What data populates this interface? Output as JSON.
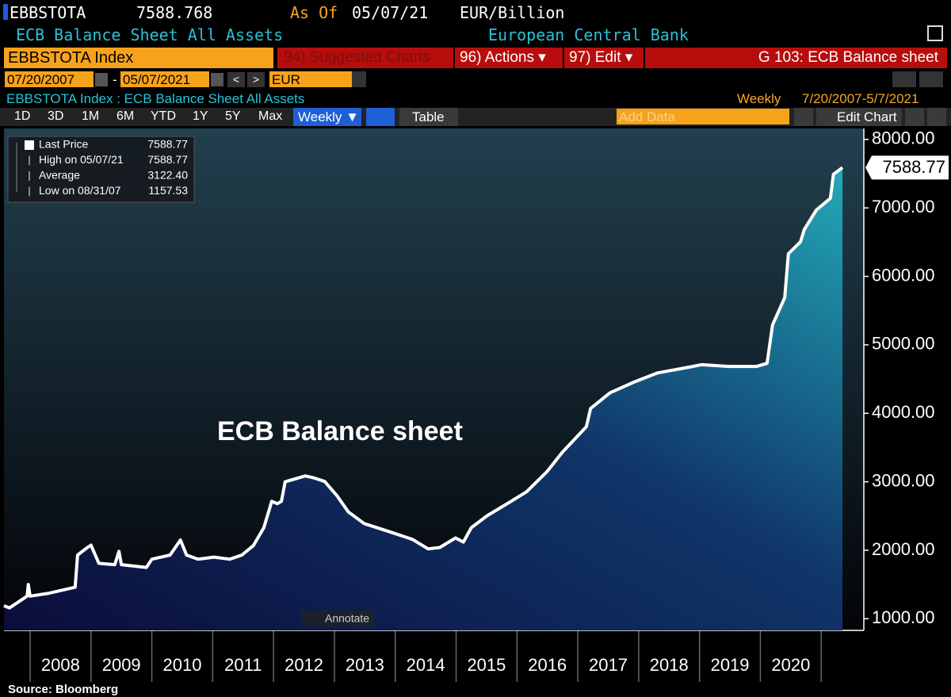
{
  "header": {
    "ticker": "EBBSTOTA",
    "price": "7588.768",
    "as_of_label": "As Of",
    "as_of": "05/07/21",
    "units": "EUR/Billion",
    "name": "ECB Balance Sheet All Assets",
    "source_org": "European Central Bank"
  },
  "command_bar": {
    "security": "EBBSTOTA Index",
    "suggested": "94) Suggested Charts",
    "actions": "96) Actions ▾",
    "edit": "97) Edit ▾",
    "page": "G 103: ECB Balance sheet"
  },
  "date_bar": {
    "start": "07/20/2007",
    "sep": "-",
    "end": "05/07/2021",
    "currency": "EUR"
  },
  "info_bar": {
    "title": "EBBSTOTA Index : ECB Balance Sheet All Assets",
    "frequency": "Weekly",
    "range": "7/20/2007-5/7/2021"
  },
  "toolbar": {
    "periods": [
      "1D",
      "3D",
      "1M",
      "6M",
      "YTD",
      "1Y",
      "5Y",
      "Max"
    ],
    "frequency": "Weekly ▼",
    "table": "Table",
    "add_data": "Add Data",
    "edit_chart": "Edit Chart"
  },
  "chart_data": {
    "type": "area",
    "color": "#ffffff",
    "legend_rows": [
      {
        "label": "Last Price",
        "value": "7588.77"
      },
      {
        "label": "High on 05/07/21",
        "value": "7588.77"
      },
      {
        "label": "Average",
        "value": "3122.40"
      },
      {
        "label": "Low on 08/31/07",
        "value": "1157.53"
      }
    ],
    "annotation": "ECB Balance sheet",
    "annotate_button": "Annotate",
    "x": [
      2007.57,
      2007.66,
      2007.95,
      2007.97,
      2008.0,
      2008.29,
      2008.74,
      2008.78,
      2008.94,
      2009.0,
      2009.13,
      2009.39,
      2009.46,
      2009.5,
      2009.91,
      2010.0,
      2010.3,
      2010.47,
      2010.57,
      2010.76,
      2011.02,
      2011.28,
      2011.48,
      2011.67,
      2011.84,
      2011.97,
      2012.06,
      2012.13,
      2012.19,
      2012.52,
      2012.65,
      2012.84,
      2013.04,
      2013.23,
      2013.49,
      2013.89,
      2014.28,
      2014.54,
      2014.73,
      2014.99,
      2015.12,
      2015.25,
      2015.51,
      2015.84,
      2016.16,
      2016.49,
      2016.75,
      2017.14,
      2017.21,
      2017.53,
      2017.92,
      2018.31,
      2018.83,
      2019.03,
      2019.48,
      2019.94,
      2020.11,
      2020.2,
      2020.4,
      2020.46,
      2020.66,
      2020.72,
      2020.92,
      2021.15,
      2021.2,
      2021.35
    ],
    "values": [
      1190,
      1157.53,
      1330,
      1500,
      1330,
      1370,
      1460,
      1930,
      2040,
      2075,
      1810,
      1790,
      1985,
      1790,
      1750,
      1870,
      1930,
      2150,
      1930,
      1870,
      1900,
      1870,
      1930,
      2070,
      2330,
      2715,
      2680,
      2715,
      3000,
      3086,
      3060,
      3005,
      2800,
      2560,
      2390,
      2275,
      2160,
      2020,
      2040,
      2180,
      2120,
      2330,
      2505,
      2680,
      2855,
      3145,
      3435,
      3805,
      4070,
      4300,
      4455,
      4590,
      4675,
      4710,
      4685,
      4685,
      4730,
      5290,
      5690,
      6330,
      6505,
      6680,
      6970,
      7140,
      7490,
      7588.77
    ],
    "xlim": [
      2007.57,
      2021.7
    ],
    "xticks": [
      {
        "value": 2008.5,
        "label": "2008"
      },
      {
        "value": 2009.5,
        "label": "2009"
      },
      {
        "value": 2010.5,
        "label": "2010"
      },
      {
        "value": 2011.5,
        "label": "2011"
      },
      {
        "value": 2012.5,
        "label": "2012"
      },
      {
        "value": 2013.5,
        "label": "2013"
      },
      {
        "value": 2014.5,
        "label": "2014"
      },
      {
        "value": 2015.5,
        "label": "2015"
      },
      {
        "value": 2016.5,
        "label": "2016"
      },
      {
        "value": 2017.5,
        "label": "2017"
      },
      {
        "value": 2018.5,
        "label": "2018"
      },
      {
        "value": 2019.5,
        "label": "2019"
      },
      {
        "value": 2020.5,
        "label": "2020"
      }
    ],
    "ylim": [
      830,
      8160
    ],
    "yticks": [
      {
        "value": 1000,
        "label": "1000.00"
      },
      {
        "value": 2000,
        "label": "2000.00"
      },
      {
        "value": 3000,
        "label": "3000.00"
      },
      {
        "value": 4000,
        "label": "4000.00"
      },
      {
        "value": 5000,
        "label": "5000.00"
      },
      {
        "value": 6000,
        "label": "6000.00"
      },
      {
        "value": 7000,
        "label": "7000.00"
      },
      {
        "value": 8000,
        "label": "8000.00"
      }
    ]
  },
  "footer": {
    "source": "Source: Bloomberg"
  }
}
